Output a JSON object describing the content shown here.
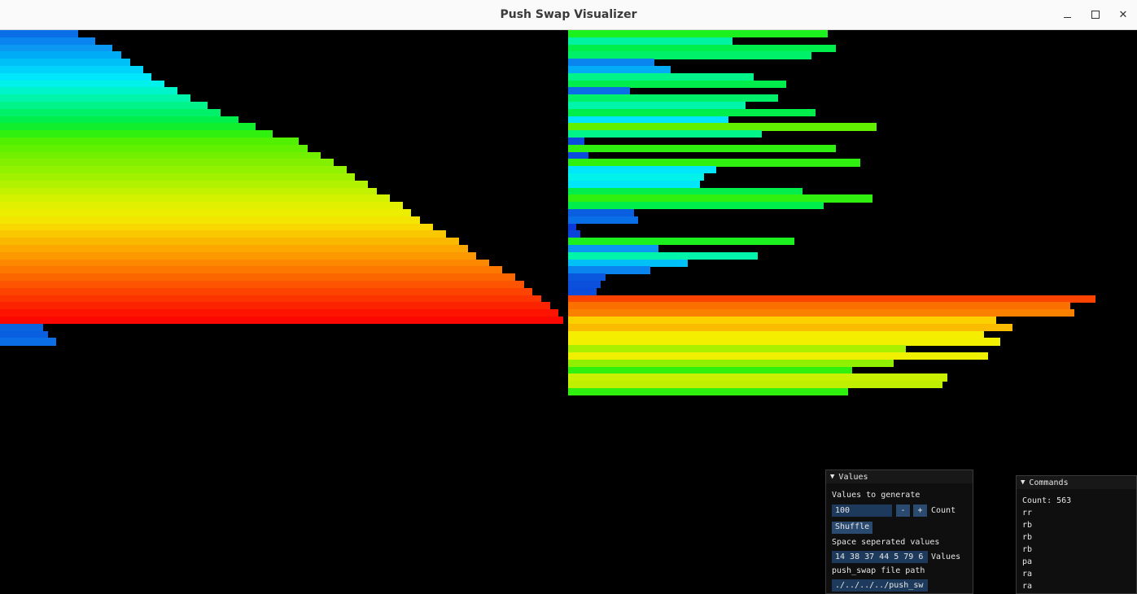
{
  "window": {
    "title": "Push Swap Visualizer"
  },
  "stack_a": {
    "bars": [
      {
        "value": 18,
        "color": "#0a6ee6"
      },
      {
        "value": 22,
        "color": "#0a84ee"
      },
      {
        "value": 26,
        "color": "#0a98f2"
      },
      {
        "value": 28,
        "color": "#00acf5"
      },
      {
        "value": 30,
        "color": "#00c0f8"
      },
      {
        "value": 33,
        "color": "#00d4fa"
      },
      {
        "value": 35,
        "color": "#00e6fa"
      },
      {
        "value": 38,
        "color": "#00f2ea"
      },
      {
        "value": 41,
        "color": "#00f4cc"
      },
      {
        "value": 44,
        "color": "#00f4aa"
      },
      {
        "value": 48,
        "color": "#00f48a"
      },
      {
        "value": 51,
        "color": "#00f06a"
      },
      {
        "value": 55,
        "color": "#00ee4c"
      },
      {
        "value": 59,
        "color": "#10ee2e"
      },
      {
        "value": 63,
        "color": "#30f010"
      },
      {
        "value": 69,
        "color": "#50f000"
      },
      {
        "value": 71,
        "color": "#60f000"
      },
      {
        "value": 74,
        "color": "#72f000"
      },
      {
        "value": 77,
        "color": "#82f000"
      },
      {
        "value": 80,
        "color": "#92f200"
      },
      {
        "value": 82,
        "color": "#a2f200"
      },
      {
        "value": 85,
        "color": "#b2f200"
      },
      {
        "value": 87,
        "color": "#c2f200"
      },
      {
        "value": 90,
        "color": "#d2f200"
      },
      {
        "value": 93,
        "color": "#e0f000"
      },
      {
        "value": 95,
        "color": "#ecee00"
      },
      {
        "value": 97,
        "color": "#f4e600"
      },
      {
        "value": 100,
        "color": "#f8d800"
      },
      {
        "value": 103,
        "color": "#fac800"
      },
      {
        "value": 106,
        "color": "#fbb800"
      },
      {
        "value": 108,
        "color": "#fca800"
      },
      {
        "value": 110,
        "color": "#fc9800"
      },
      {
        "value": 113,
        "color": "#fc8800"
      },
      {
        "value": 116,
        "color": "#fc7800"
      },
      {
        "value": 119,
        "color": "#fc6600"
      },
      {
        "value": 121,
        "color": "#fc5400"
      },
      {
        "value": 123,
        "color": "#fc4400"
      },
      {
        "value": 125,
        "color": "#fc3400"
      },
      {
        "value": 127,
        "color": "#fc2400"
      },
      {
        "value": 129,
        "color": "#fc1400"
      },
      {
        "value": 130,
        "color": "#fb0800"
      },
      {
        "value": 10,
        "color": "#0a64e2"
      },
      {
        "value": 11,
        "color": "#0a5ee0"
      },
      {
        "value": 13,
        "color": "#0a6ee6"
      }
    ]
  },
  "stack_b": {
    "bars": [
      {
        "value": 63,
        "color": "#1cf01e"
      },
      {
        "value": 40,
        "color": "#00f2a2"
      },
      {
        "value": 65,
        "color": "#00ee4c"
      },
      {
        "value": 59,
        "color": "#00f06a"
      },
      {
        "value": 21,
        "color": "#0a84ee"
      },
      {
        "value": 25,
        "color": "#00acf5"
      },
      {
        "value": 45,
        "color": "#00f48a"
      },
      {
        "value": 53,
        "color": "#00ee4c"
      },
      {
        "value": 15,
        "color": "#0a6ee6"
      },
      {
        "value": 51,
        "color": "#00f06a"
      },
      {
        "value": 43,
        "color": "#00f4aa"
      },
      {
        "value": 60,
        "color": "#00ee4c"
      },
      {
        "value": 39,
        "color": "#00e6fa"
      },
      {
        "value": 75,
        "color": "#60f000"
      },
      {
        "value": 47,
        "color": "#00f48a"
      },
      {
        "value": 4,
        "color": "#0a4cdc"
      },
      {
        "value": 65,
        "color": "#30f010"
      },
      {
        "value": 5,
        "color": "#0a4cdc"
      },
      {
        "value": 71,
        "color": "#30f010"
      },
      {
        "value": 36,
        "color": "#00e6fa"
      },
      {
        "value": 33,
        "color": "#00f2ea"
      },
      {
        "value": 32,
        "color": "#00e6fa"
      },
      {
        "value": 57,
        "color": "#00ee4c"
      },
      {
        "value": 74,
        "color": "#30f010"
      },
      {
        "value": 62,
        "color": "#00ee4c"
      },
      {
        "value": 16,
        "color": "#0a5ee0"
      },
      {
        "value": 17,
        "color": "#0a6ee6"
      },
      {
        "value": 2,
        "color": "#0a3ad8"
      },
      {
        "value": 3,
        "color": "#0a44da"
      },
      {
        "value": 55,
        "color": "#1cf01e"
      },
      {
        "value": 22,
        "color": "#0a98f2"
      },
      {
        "value": 46,
        "color": "#00f4aa"
      },
      {
        "value": 29,
        "color": "#00c0f8"
      },
      {
        "value": 20,
        "color": "#0a84ee"
      },
      {
        "value": 9,
        "color": "#0a58de"
      },
      {
        "value": 8,
        "color": "#0a50dc"
      },
      {
        "value": 7,
        "color": "#0a4cdc"
      },
      {
        "value": 128,
        "color": "#fc4400"
      },
      {
        "value": 122,
        "color": "#fc7000"
      },
      {
        "value": 123,
        "color": "#fc8000"
      },
      {
        "value": 104,
        "color": "#fbd200"
      },
      {
        "value": 108,
        "color": "#fbbc00"
      },
      {
        "value": 101,
        "color": "#f6ee00"
      },
      {
        "value": 105,
        "color": "#f2f000"
      },
      {
        "value": 82,
        "color": "#a8f000"
      },
      {
        "value": 102,
        "color": "#eef000"
      },
      {
        "value": 79,
        "color": "#90f000"
      },
      {
        "value": 69,
        "color": "#30f010"
      },
      {
        "value": 92,
        "color": "#c8f000"
      },
      {
        "value": 91,
        "color": "#c0f000"
      },
      {
        "value": 68,
        "color": "#30f010"
      }
    ]
  },
  "values_panel": {
    "header": "Values",
    "count_label_text": "Values to generate",
    "count_value": "100",
    "minus": "-",
    "plus": "+",
    "count_suffix": "Count",
    "shuffle": "Shuffle",
    "space_label": "Space seperated values",
    "space_value": "14 38 37 44 5 79 6",
    "space_suffix": "Values",
    "path_label": "push_swap file path",
    "path_value": "./../../../push_sw"
  },
  "commands_panel": {
    "header": "Commands",
    "count": "Count: 563",
    "items": [
      "rr",
      "rb",
      "rb",
      "rb",
      "pa",
      "ra",
      "ra"
    ]
  }
}
